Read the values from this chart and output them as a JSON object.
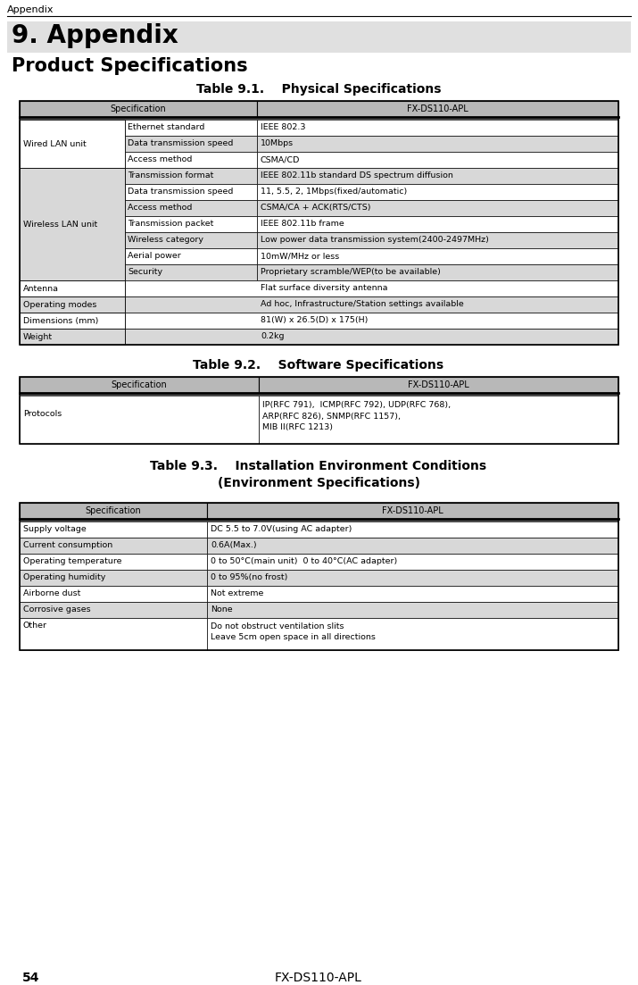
{
  "page_header": "Appendix",
  "page_number": "54",
  "page_footer": "FX-DS110-APL",
  "section_title": "9. Appendix",
  "section_subtitle": "Product Specifications",
  "table1_title": "Table 9.1.    Physical Specifications",
  "table1_header": [
    "Specification",
    "FX-DS110-APL"
  ],
  "table1_rows": [
    [
      "Wired LAN unit",
      "Ethernet standard",
      "IEEE 802.3"
    ],
    [
      "",
      "Data transmission speed",
      "10Mbps"
    ],
    [
      "",
      "Access method",
      "CSMA/CD"
    ],
    [
      "Wireless LAN unit",
      "Transmission format",
      "IEEE 802.11b standard DS spectrum diffusion"
    ],
    [
      "",
      "Data transmission speed",
      "11, 5.5, 2, 1Mbps(fixed/automatic)"
    ],
    [
      "",
      "Access method",
      "CSMA/CA + ACK(RTS/CTS)"
    ],
    [
      "",
      "Transmission packet",
      "IEEE 802.11b frame"
    ],
    [
      "",
      "Wireless category",
      "Low power data transmission system(2400-2497MHz)"
    ],
    [
      "",
      "Aerial power",
      "10mW/MHz or less"
    ],
    [
      "",
      "Security",
      "Proprietary scramble/WEP(to be available)"
    ],
    [
      "Antenna",
      "",
      "Flat surface diversity antenna"
    ],
    [
      "Operating modes",
      "",
      "Ad hoc, Infrastructure/Station settings available"
    ],
    [
      "Dimensions (mm)",
      "",
      "81(W) x 26.5(D) x 175(H)"
    ],
    [
      "Weight",
      "",
      "0.2kg"
    ]
  ],
  "table2_title": "Table 9.2.    Software Specifications",
  "table2_header": [
    "Specification",
    "FX-DS110-APL"
  ],
  "table2_rows": [
    [
      "Protocols",
      "IP(RFC 791),  ICMP(RFC 792), UDP(RFC 768),\nARP(RFC 826), SNMP(RFC 1157),\nMIB II(RFC 1213)"
    ]
  ],
  "table3_title": "Table 9.3.    Installation Environment Conditions\n(Environment Specifications)",
  "table3_header": [
    "Specification",
    "FX-DS110-APL"
  ],
  "table3_rows": [
    [
      "Supply voltage",
      "DC 5.5 to 7.0V(using AC adapter)"
    ],
    [
      "Current consumption",
      "0.6A(Max.)"
    ],
    [
      "Operating temperature",
      "0 to 50°C(main unit)  0 to 40°C(AC adapter)"
    ],
    [
      "Operating humidity",
      "0 to 95%(no frost)"
    ],
    [
      "Airborne dust",
      "Not extreme"
    ],
    [
      "Corrosive gases",
      "None"
    ],
    [
      "Other",
      "Do not obstruct ventilation slits\nLeave 5cm open space in all directions"
    ]
  ],
  "header_bg": "#b8b8b8",
  "odd_row_bg": "#ffffff",
  "even_row_bg": "#d8d8d8",
  "section_bg": "#e0e0e0",
  "border_color": "#000000"
}
